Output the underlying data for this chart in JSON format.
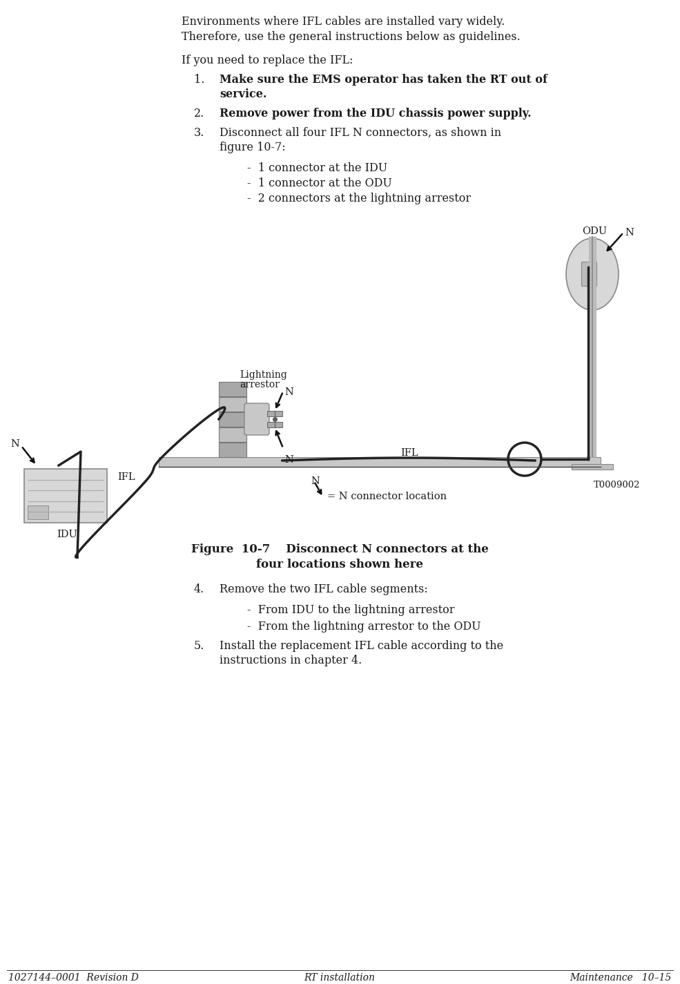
{
  "bg_color": "#ffffff",
  "text_color": "#1a1a1a",
  "footer_left": "1027144–0001  Revision D",
  "footer_center": "RT installation",
  "footer_right": "Maintenance   10–15",
  "intro_line1": "Environments where IFL cables are installed vary widely.",
  "intro_line2": "Therefore, use the general instructions below as guidelines.",
  "para1": "If you need to replace the IFL:",
  "item1_bold": "Make sure the EMS operator has taken the RT out of",
  "item1_bold2": "service.",
  "item2_bold": "Remove power from the IDU chassis power supply.",
  "item3a": "Disconnect all four IFL N connectors, as shown in",
  "item3b": "figure 10-7:",
  "sub1": "1 connector at the IDU",
  "sub2": "1 connector at the ODU",
  "sub3": "2 connectors at the lightning arrestor",
  "item4": "Remove the two IFL cable segments:",
  "sub4a": "From IDU to the lightning arrestor",
  "sub4b": "From the lightning arrestor to the ODU",
  "item5a": "Install the replacement IFL cable according to the",
  "item5b": "instructions in chapter 4.",
  "fig_cap1": "Figure  10-7    Disconnect N connectors at the",
  "fig_cap2": "four locations shown here",
  "legend_txt": "= N connector location",
  "t_label": "T0009002"
}
